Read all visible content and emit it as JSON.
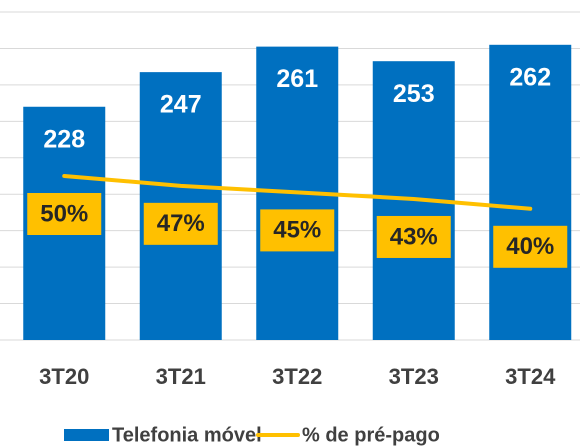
{
  "chart_data": {
    "type": "bar-line",
    "categories": [
      "3T20",
      "3T21",
      "3T22",
      "3T23",
      "3T24"
    ],
    "series": [
      {
        "name": "Telefonia móvel",
        "type": "bar",
        "color": "#0070c0",
        "values": [
          228,
          247,
          261,
          253,
          262
        ]
      },
      {
        "name": "% de pré-pago",
        "type": "line",
        "axis": "y2",
        "color": "#ffc000",
        "values": [
          50,
          47,
          45,
          43,
          40
        ],
        "value_labels": [
          "50%",
          "47%",
          "45%",
          "43%",
          "40%"
        ]
      }
    ],
    "ylim": [
      100,
      280
    ],
    "yticks": [
      100,
      120,
      140,
      160,
      180,
      200,
      220,
      240,
      260,
      280
    ],
    "y2lim": [
      0,
      100
    ],
    "grid": true,
    "legend": "bottom"
  }
}
